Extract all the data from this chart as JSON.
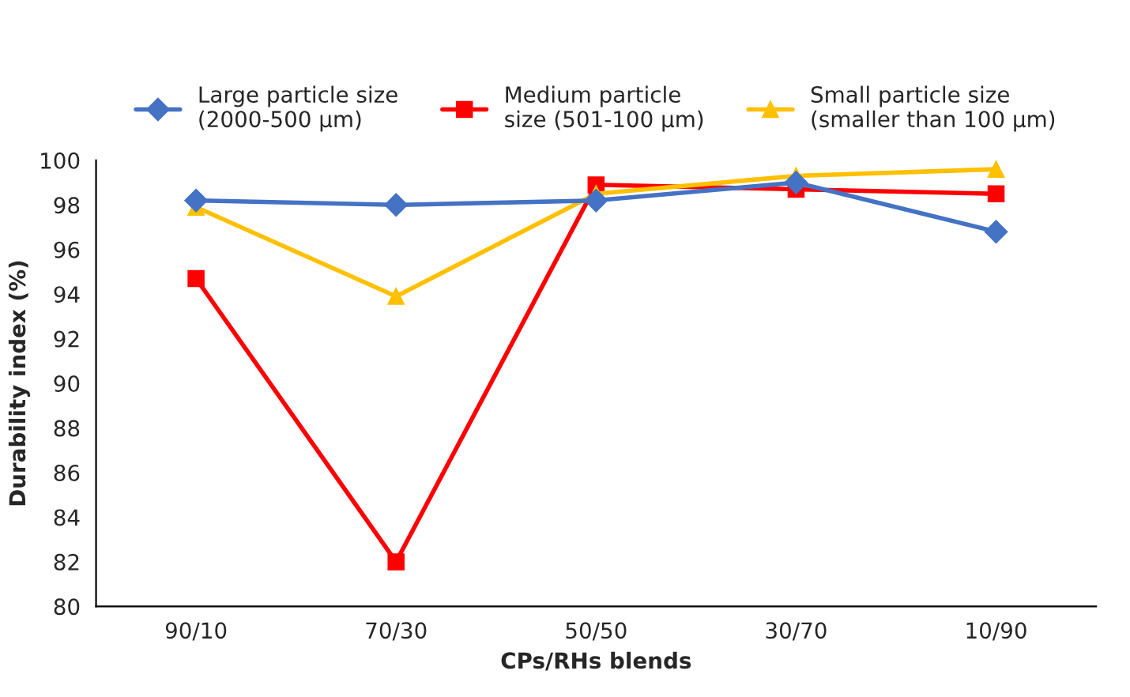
{
  "chart_data": {
    "type": "line",
    "xlabel": "CPs/RHs blends",
    "ylabel": "Durability index (%)",
    "categories": [
      "90/10",
      "70/30",
      "50/50",
      "30/70",
      "10/90"
    ],
    "series": [
      {
        "name": "Large particle size\n(2000-500 µm)",
        "color": "#4472c4",
        "marker": "diamond",
        "values": [
          98.2,
          98.0,
          98.2,
          99.0,
          96.8
        ]
      },
      {
        "name": "Medium particle\nsize (501-100 µm)",
        "color": "#ff0000",
        "marker": "square",
        "values": [
          94.7,
          82.0,
          98.9,
          98.7,
          98.5
        ]
      },
      {
        "name": "Small particle size\n(smaller than 100 µm)",
        "color": "#ffc000",
        "marker": "triangle",
        "values": [
          97.9,
          93.9,
          98.5,
          99.3,
          99.6
        ]
      }
    ],
    "ylim": [
      80,
      100
    ],
    "yticks": [
      80,
      82,
      84,
      86,
      88,
      90,
      92,
      94,
      96,
      98,
      100
    ],
    "grid": false,
    "legend": "top",
    "line_style": "solid"
  }
}
